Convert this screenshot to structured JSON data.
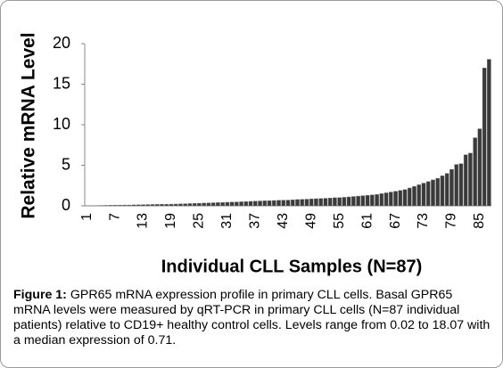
{
  "chart_data": {
    "type": "bar",
    "y_label": "Relative mRNA Level",
    "x_label": "Individual CLL Samples (N=87)",
    "categories": [
      "1",
      null,
      null,
      null,
      null,
      null,
      "7",
      null,
      null,
      null,
      null,
      null,
      "13",
      null,
      null,
      null,
      null,
      null,
      "19",
      null,
      null,
      null,
      null,
      null,
      "25",
      null,
      null,
      null,
      null,
      null,
      "31",
      null,
      null,
      null,
      null,
      null,
      "37",
      null,
      null,
      null,
      null,
      null,
      "43",
      null,
      null,
      null,
      null,
      null,
      "49",
      null,
      null,
      null,
      null,
      null,
      "55",
      null,
      null,
      null,
      null,
      null,
      "61",
      null,
      null,
      null,
      null,
      null,
      "67",
      null,
      null,
      null,
      null,
      null,
      "73",
      null,
      null,
      null,
      null,
      null,
      "79",
      null,
      null,
      null,
      null,
      null,
      "85",
      null,
      null
    ],
    "values": [
      0.02,
      0.03,
      0.04,
      0.05,
      0.06,
      0.07,
      0.08,
      0.09,
      0.1,
      0.1,
      0.12,
      0.13,
      0.15,
      0.16,
      0.17,
      0.18,
      0.19,
      0.2,
      0.21,
      0.22,
      0.24,
      0.26,
      0.28,
      0.3,
      0.32,
      0.34,
      0.36,
      0.38,
      0.4,
      0.42,
      0.44,
      0.46,
      0.48,
      0.5,
      0.52,
      0.55,
      0.58,
      0.6,
      0.62,
      0.64,
      0.66,
      0.68,
      0.7,
      0.71,
      0.75,
      0.78,
      0.8,
      0.82,
      0.85,
      0.88,
      0.9,
      0.93,
      0.96,
      1.0,
      1.02,
      1.05,
      1.1,
      1.15,
      1.2,
      1.25,
      1.3,
      1.35,
      1.4,
      1.5,
      1.6,
      1.7,
      1.8,
      1.9,
      2.0,
      2.2,
      2.4,
      2.6,
      2.8,
      3.0,
      3.2,
      3.4,
      3.7,
      4.0,
      4.5,
      5.1,
      5.2,
      6.3,
      6.5,
      8.4,
      9.5,
      17.0,
      18.07
    ],
    "color": "#3a3a3a",
    "ylim": [
      0,
      20
    ],
    "yticks": [
      0,
      5,
      10,
      15,
      20
    ],
    "grid": false
  },
  "caption": {
    "label": "Figure 1:",
    "text": "GPR65 mRNA expression profile in primary CLL cells. Basal GPR65 mRNA levels were measured by qRT-PCR in primary CLL cells (N=87 individual patients) relative to CD19+ healthy control cells. Levels range from 0.02 to 18.07 with a median expression of 0.71."
  }
}
